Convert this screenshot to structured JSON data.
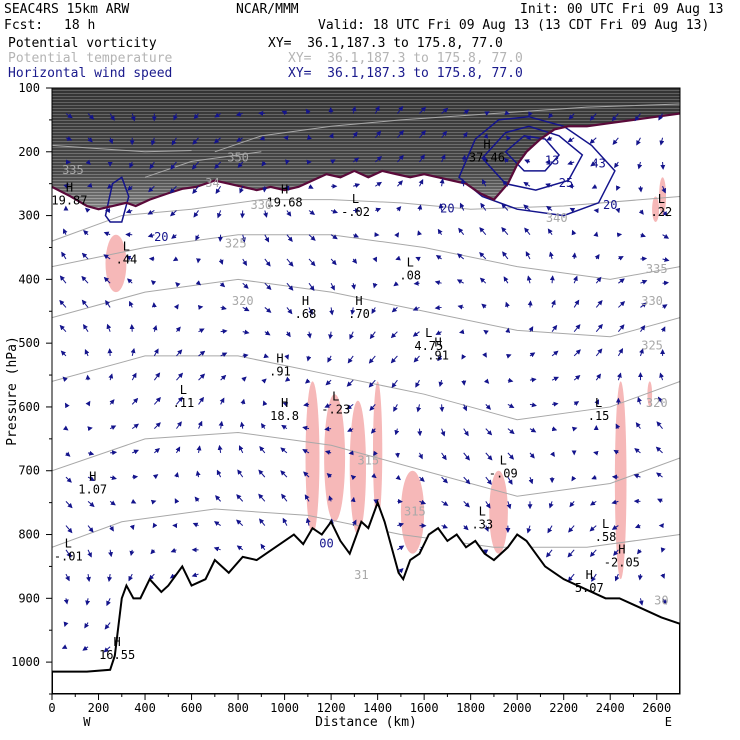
{
  "header": {
    "model": "SEAC4RS 15km ARW",
    "org": "NCAR/MMM",
    "init": "Init: 00 UTC Fri 09 Aug 13",
    "fcst_label": "Fcst:",
    "fcst_value": "18 h",
    "valid": "Valid: 18 UTC Fri 09 Aug 13 (13 CDT Fri 09 Aug 13)",
    "fields": [
      {
        "name": "Potential vorticity",
        "xy": "XY=  36.1,187.3 to 175.8, 77.0",
        "color": "#000000"
      },
      {
        "name": "Potential temperature",
        "xy": "XY=  36.1,187.3 to 175.8, 77.0",
        "color": "#b4b4b4"
      },
      {
        "name": "Horizontal wind speed",
        "xy": "XY=  36.1,187.3 to 175.8, 77.0",
        "color": "#1a1a8c"
      }
    ]
  },
  "colors": {
    "pv_high": "#f6b8b8",
    "tropopause": "#5a0a3a",
    "wind": "#14148c",
    "theta": "#a8a8a8",
    "terrain": "#000000"
  },
  "chart_data": {
    "type": "cross-section",
    "xlabel": "Distance (km)",
    "ylabel": "Pressure (hPa)",
    "xlim": [
      0,
      2700
    ],
    "ylim": [
      1050,
      100
    ],
    "x_ticks": [
      "0",
      "200",
      "400",
      "600",
      "800",
      "1000",
      "1200",
      "1400",
      "1600",
      "1800",
      "2000",
      "2200",
      "2400",
      "2600"
    ],
    "y_ticks": [
      "100",
      "200",
      "300",
      "400",
      "500",
      "600",
      "700",
      "800",
      "900",
      "1000"
    ],
    "direction_labels": {
      "west": "W",
      "east": "E"
    },
    "terrain_profile": [
      [
        0,
        1015
      ],
      [
        150,
        1015
      ],
      [
        250,
        1012
      ],
      [
        270,
        990
      ],
      [
        300,
        900
      ],
      [
        320,
        880
      ],
      [
        350,
        900
      ],
      [
        380,
        900
      ],
      [
        420,
        870
      ],
      [
        470,
        890
      ],
      [
        500,
        880
      ],
      [
        560,
        850
      ],
      [
        600,
        880
      ],
      [
        660,
        870
      ],
      [
        700,
        840
      ],
      [
        760,
        860
      ],
      [
        820,
        835
      ],
      [
        880,
        840
      ],
      [
        920,
        830
      ],
      [
        960,
        820
      ],
      [
        1000,
        810
      ],
      [
        1040,
        800
      ],
      [
        1080,
        815
      ],
      [
        1120,
        790
      ],
      [
        1160,
        800
      ],
      [
        1200,
        780
      ],
      [
        1240,
        810
      ],
      [
        1280,
        830
      ],
      [
        1310,
        800
      ],
      [
        1330,
        780
      ],
      [
        1360,
        790
      ],
      [
        1400,
        750
      ],
      [
        1430,
        780
      ],
      [
        1460,
        820
      ],
      [
        1490,
        860
      ],
      [
        1510,
        870
      ],
      [
        1540,
        840
      ],
      [
        1580,
        830
      ],
      [
        1620,
        800
      ],
      [
        1660,
        790
      ],
      [
        1700,
        810
      ],
      [
        1740,
        800
      ],
      [
        1780,
        820
      ],
      [
        1820,
        810
      ],
      [
        1860,
        830
      ],
      [
        1900,
        840
      ],
      [
        1960,
        820
      ],
      [
        2000,
        800
      ],
      [
        2040,
        810
      ],
      [
        2080,
        830
      ],
      [
        2120,
        850
      ],
      [
        2160,
        860
      ],
      [
        2200,
        870
      ],
      [
        2260,
        880
      ],
      [
        2320,
        890
      ],
      [
        2380,
        900
      ],
      [
        2440,
        900
      ],
      [
        2500,
        910
      ],
      [
        2560,
        920
      ],
      [
        2620,
        930
      ],
      [
        2700,
        940
      ]
    ],
    "tropopause_profile": [
      [
        0,
        255
      ],
      [
        80,
        270
      ],
      [
        150,
        285
      ],
      [
        200,
        290
      ],
      [
        260,
        285
      ],
      [
        320,
        280
      ],
      [
        360,
        285
      ],
      [
        420,
        275
      ],
      [
        500,
        265
      ],
      [
        560,
        258
      ],
      [
        620,
        255
      ],
      [
        700,
        245
      ],
      [
        760,
        250
      ],
      [
        820,
        255
      ],
      [
        880,
        260
      ],
      [
        940,
        255
      ],
      [
        1000,
        260
      ],
      [
        1060,
        255
      ],
      [
        1120,
        245
      ],
      [
        1180,
        235
      ],
      [
        1240,
        240
      ],
      [
        1300,
        230
      ],
      [
        1360,
        240
      ],
      [
        1420,
        230
      ],
      [
        1480,
        235
      ],
      [
        1540,
        240
      ],
      [
        1600,
        235
      ],
      [
        1660,
        240
      ],
      [
        1720,
        245
      ],
      [
        1780,
        250
      ],
      [
        1840,
        265
      ],
      [
        1900,
        275
      ],
      [
        1960,
        250
      ],
      [
        2000,
        220
      ],
      [
        2040,
        200
      ],
      [
        2100,
        180
      ],
      [
        2160,
        165
      ],
      [
        2220,
        160
      ],
      [
        2300,
        160
      ],
      [
        2400,
        155
      ],
      [
        2500,
        150
      ],
      [
        2600,
        145
      ],
      [
        2700,
        140
      ]
    ],
    "theta_contours": [
      {
        "label": "335",
        "points": [
          [
            0,
            190
          ],
          [
            200,
            195
          ],
          [
            400,
            200
          ],
          [
            600,
            198
          ]
        ]
      },
      {
        "label": "340",
        "points": [
          [
            400,
            240
          ],
          [
            600,
            215
          ],
          [
            900,
            200
          ]
        ]
      },
      {
        "label": "350",
        "points": [
          [
            700,
            200
          ],
          [
            900,
            175
          ],
          [
            1200,
            160
          ],
          [
            1500,
            150
          ],
          [
            1900,
            140
          ],
          [
            2300,
            130
          ],
          [
            2700,
            125
          ]
        ]
      },
      {
        "label": "330",
        "points": [
          [
            0,
            340
          ],
          [
            300,
            300
          ],
          [
            600,
            290
          ],
          [
            900,
            275
          ],
          [
            1200,
            275
          ],
          [
            1500,
            280
          ],
          [
            1800,
            290
          ],
          [
            2200,
            285
          ],
          [
            2700,
            270
          ]
        ]
      },
      {
        "label": "325",
        "points": [
          [
            0,
            380
          ],
          [
            400,
            350
          ],
          [
            800,
            330
          ],
          [
            1200,
            330
          ],
          [
            1600,
            350
          ],
          [
            2000,
            380
          ],
          [
            2400,
            400
          ],
          [
            2700,
            380
          ]
        ]
      },
      {
        "label": "320",
        "points": [
          [
            0,
            460
          ],
          [
            400,
            420
          ],
          [
            800,
            400
          ],
          [
            1200,
            420
          ],
          [
            1600,
            450
          ],
          [
            2000,
            480
          ],
          [
            2400,
            490
          ],
          [
            2700,
            460
          ]
        ]
      },
      {
        "label": "315",
        "points": [
          [
            0,
            560
          ],
          [
            400,
            520
          ],
          [
            800,
            520
          ],
          [
            1200,
            550
          ],
          [
            1600,
            580
          ],
          [
            2000,
            620
          ],
          [
            2400,
            600
          ],
          [
            2700,
            560
          ]
        ]
      },
      {
        "label": "310",
        "points": [
          [
            0,
            700
          ],
          [
            400,
            650
          ],
          [
            800,
            640
          ],
          [
            1200,
            660
          ],
          [
            1600,
            700
          ],
          [
            2000,
            740
          ],
          [
            2400,
            720
          ],
          [
            2700,
            680
          ]
        ]
      },
      {
        "label": "305",
        "points": [
          [
            0,
            820
          ],
          [
            300,
            780
          ],
          [
            700,
            760
          ],
          [
            1100,
            770
          ],
          [
            1500,
            800
          ],
          [
            1900,
            820
          ],
          [
            2300,
            820
          ],
          [
            2700,
            800
          ]
        ]
      }
    ],
    "wind_speed_contours": [
      {
        "label": "20",
        "points": [
          [
            230,
            300
          ],
          [
            260,
            250
          ],
          [
            300,
            240
          ],
          [
            330,
            270
          ],
          [
            300,
            310
          ],
          [
            250,
            310
          ]
        ]
      },
      {
        "label": "20",
        "points": [
          [
            1750,
            240
          ],
          [
            1820,
            180
          ],
          [
            1920,
            150
          ],
          [
            2050,
            145
          ],
          [
            2200,
            160
          ],
          [
            2320,
            190
          ],
          [
            2420,
            230
          ],
          [
            2350,
            280
          ],
          [
            2200,
            300
          ],
          [
            2000,
            290
          ],
          [
            1850,
            270
          ]
        ]
      },
      {
        "label": "25",
        "points": [
          [
            1850,
            210
          ],
          [
            1950,
            170
          ],
          [
            2050,
            160
          ],
          [
            2180,
            175
          ],
          [
            2280,
            205
          ],
          [
            2220,
            245
          ],
          [
            2080,
            260
          ],
          [
            1950,
            250
          ]
        ]
      },
      {
        "label": "",
        "points": [
          [
            1950,
            200
          ],
          [
            2030,
            175
          ],
          [
            2120,
            180
          ],
          [
            2180,
            205
          ],
          [
            2120,
            230
          ],
          [
            2030,
            230
          ]
        ]
      }
    ],
    "pv_high_regions": [
      {
        "x": [
          230,
          320
        ],
        "p": [
          330,
          420
        ]
      },
      {
        "x": [
          1090,
          1150
        ],
        "p": [
          560,
          800
        ]
      },
      {
        "x": [
          1170,
          1260
        ],
        "p": [
          580,
          780
        ]
      },
      {
        "x": [
          1280,
          1350
        ],
        "p": [
          590,
          800
        ]
      },
      {
        "x": [
          1380,
          1420
        ],
        "p": [
          560,
          780
        ]
      },
      {
        "x": [
          1500,
          1600
        ],
        "p": [
          700,
          830
        ]
      },
      {
        "x": [
          1880,
          1960
        ],
        "p": [
          700,
          830
        ]
      },
      {
        "x": [
          2420,
          2470
        ],
        "p": [
          560,
          870
        ]
      },
      {
        "x": [
          2560,
          2580
        ],
        "p": [
          560,
          600
        ]
      },
      {
        "x": [
          2580,
          2610
        ],
        "p": [
          270,
          310
        ]
      },
      {
        "x": [
          2610,
          2640
        ],
        "p": [
          240,
          300
        ]
      }
    ],
    "annotations": [
      {
        "x": 75,
        "p": 262,
        "text": "H",
        "val": "19.87"
      },
      {
        "x": 320,
        "p": 355,
        "text": "L",
        "val": ".44"
      },
      {
        "x": 175,
        "p": 715,
        "text": "H",
        "val": "1.07"
      },
      {
        "x": 70,
        "p": 820,
        "text": "L",
        "val": "-.01"
      },
      {
        "x": 280,
        "p": 975,
        "text": "H",
        "val": "16.55"
      },
      {
        "x": 565,
        "p": 580,
        "text": "L",
        "val": ".11"
      },
      {
        "x": 1000,
        "p": 265,
        "text": "H",
        "val": "19.68"
      },
      {
        "x": 1305,
        "p": 280,
        "text": "L",
        "val": "-.02"
      },
      {
        "x": 1090,
        "p": 440,
        "text": "H",
        "val": ".68"
      },
      {
        "x": 1320,
        "p": 440,
        "text": "H",
        "val": ".70"
      },
      {
        "x": 1540,
        "p": 380,
        "text": "L",
        "val": ".08"
      },
      {
        "x": 1620,
        "p": 490,
        "text": "L",
        "val": "4.75"
      },
      {
        "x": 1660,
        "p": 505,
        "text": "H",
        "val": ".91"
      },
      {
        "x": 980,
        "p": 530,
        "text": "H",
        "val": ".91"
      },
      {
        "x": 1000,
        "p": 600,
        "text": "H",
        "val": "18.8"
      },
      {
        "x": 1220,
        "p": 590,
        "text": "L",
        "val": "-.23"
      },
      {
        "x": 1940,
        "p": 690,
        "text": "L",
        "val": "-.09"
      },
      {
        "x": 1850,
        "p": 770,
        "text": "L",
        "val": ".33"
      },
      {
        "x": 2380,
        "p": 790,
        "text": "L",
        "val": ".58"
      },
      {
        "x": 2450,
        "p": 830,
        "text": "H",
        "val": "-2.05"
      },
      {
        "x": 2310,
        "p": 870,
        "text": "H",
        "val": "5.07"
      },
      {
        "x": 2350,
        "p": 600,
        "text": "L",
        "val": ".15"
      },
      {
        "x": 1870,
        "p": 195,
        "text": "H",
        "val": "37.46"
      },
      {
        "x": 2620,
        "p": 280,
        "text": "L",
        "val": ".22"
      }
    ],
    "contour_labels": [
      {
        "x": 90,
        "p": 235,
        "text": "335",
        "color": "#a8a8a8"
      },
      {
        "x": 800,
        "p": 215,
        "text": "350",
        "color": "#a8a8a8"
      },
      {
        "x": 690,
        "p": 255,
        "text": "34",
        "color": "#a8a8a8"
      },
      {
        "x": 900,
        "p": 290,
        "text": "330",
        "color": "#a8a8a8"
      },
      {
        "x": 790,
        "p": 350,
        "text": "325",
        "color": "#a8a8a8"
      },
      {
        "x": 820,
        "p": 440,
        "text": "320",
        "color": "#a8a8a8"
      },
      {
        "x": 2600,
        "p": 390,
        "text": "335",
        "color": "#a8a8a8"
      },
      {
        "x": 2580,
        "p": 440,
        "text": "330",
        "color": "#a8a8a8"
      },
      {
        "x": 2580,
        "p": 510,
        "text": "325",
        "color": "#a8a8a8"
      },
      {
        "x": 2600,
        "p": 600,
        "text": "320",
        "color": "#a8a8a8"
      },
      {
        "x": 1360,
        "p": 690,
        "text": "315",
        "color": "#a8a8a8"
      },
      {
        "x": 1560,
        "p": 770,
        "text": "315",
        "color": "#a8a8a8"
      },
      {
        "x": 1330,
        "p": 870,
        "text": "31",
        "color": "#a8a8a8"
      },
      {
        "x": 2620,
        "p": 910,
        "text": "30",
        "color": "#a8a8a8"
      },
      {
        "x": 2170,
        "p": 310,
        "text": "340",
        "color": "#a8a8a8"
      },
      {
        "x": 1700,
        "p": 295,
        "text": "20",
        "color": "#14148c"
      },
      {
        "x": 2210,
        "p": 255,
        "text": "25",
        "color": "#14148c"
      },
      {
        "x": 2400,
        "p": 290,
        "text": "20",
        "color": "#14148c"
      },
      {
        "x": 470,
        "p": 340,
        "text": "20",
        "color": "#14148c"
      },
      {
        "x": 1180,
        "p": 820,
        "text": "00",
        "color": "#14148c"
      },
      {
        "x": 2150,
        "p": 220,
        "text": "13",
        "color": "#14148c"
      },
      {
        "x": 2350,
        "p": 225,
        "text": "43",
        "color": "#14148c"
      }
    ]
  }
}
